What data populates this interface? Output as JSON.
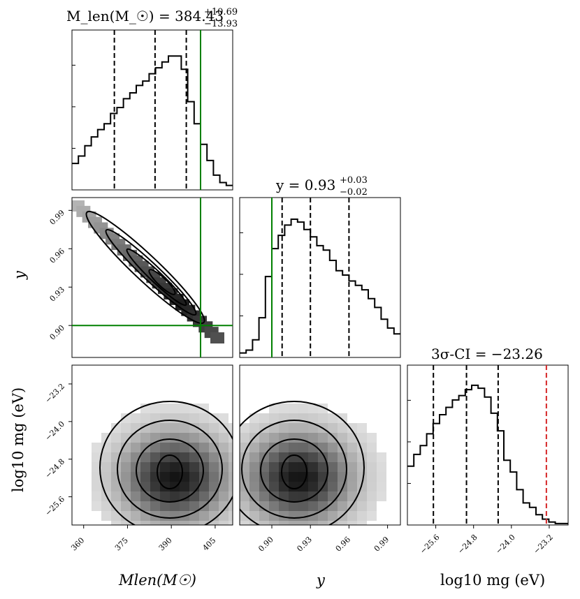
{
  "chart_data": {
    "type": "corner",
    "parameters": [
      {
        "id": "mlen",
        "title": {
          "lhs": "M_len(M_☉) = 384.43",
          "sup": "+10.69",
          "sub": "−13.93"
        },
        "axis_label": "Mlen(M☉)",
        "range": [
          356,
          411
        ],
        "ticks": [
          360,
          375,
          390,
          405
        ],
        "tick_labels": [
          "360",
          "375",
          "390",
          "405"
        ],
        "quantiles": [
          370.5,
          384.43,
          395.12
        ],
        "truth": 400,
        "hist": [
          0.18,
          0.23,
          0.3,
          0.36,
          0.41,
          0.45,
          0.52,
          0.56,
          0.62,
          0.66,
          0.71,
          0.74,
          0.79,
          0.83,
          0.87,
          0.91,
          0.91,
          0.82,
          0.6,
          0.45,
          0.31,
          0.2,
          0.1,
          0.05,
          0.03
        ]
      },
      {
        "id": "y",
        "title": {
          "lhs": "y = 0.93",
          "sup": "+0.03",
          "sub": "−0.02"
        },
        "axis_label": "y",
        "range": [
          0.875,
          1.0
        ],
        "ticks": [
          0.9,
          0.93,
          0.96,
          0.99
        ],
        "tick_labels": [
          "0.90",
          "0.93",
          "0.96",
          "0.99"
        ],
        "quantiles": [
          0.908,
          0.93,
          0.96
        ],
        "truth": 0.9,
        "hist": [
          0.03,
          0.05,
          0.12,
          0.27,
          0.55,
          0.74,
          0.83,
          0.9,
          0.94,
          0.92,
          0.87,
          0.82,
          0.76,
          0.73,
          0.66,
          0.59,
          0.56,
          0.52,
          0.49,
          0.46,
          0.4,
          0.34,
          0.26,
          0.2,
          0.16
        ]
      },
      {
        "id": "logmg",
        "title": {
          "lhs": "3σ-CI = −23.26",
          "sup": "",
          "sub": ""
        },
        "axis_label": "log10 mg (eV)",
        "range": [
          -26.2,
          -22.8
        ],
        "ticks": [
          -25.6,
          -24.8,
          -24.0,
          -23.2
        ],
        "tick_labels": [
          "−25.6",
          "−24.8",
          "−24.0",
          "−23.2"
        ],
        "quantiles": [
          -25.65,
          -24.95,
          -24.28
        ],
        "truth": null,
        "ci_3sigma": -23.26,
        "hist": [
          0.4,
          0.48,
          0.54,
          0.62,
          0.69,
          0.75,
          0.8,
          0.85,
          0.88,
          0.92,
          0.95,
          0.93,
          0.87,
          0.76,
          0.64,
          0.44,
          0.36,
          0.24,
          0.15,
          0.12,
          0.07,
          0.04,
          0.02,
          0.01,
          0.01
        ]
      }
    ],
    "y_axis_labels": {
      "row1": "y",
      "row2": "log10 mg (eV)"
    },
    "mlen_vs_y_peak": {
      "x": 390,
      "y": 0.92
    }
  }
}
